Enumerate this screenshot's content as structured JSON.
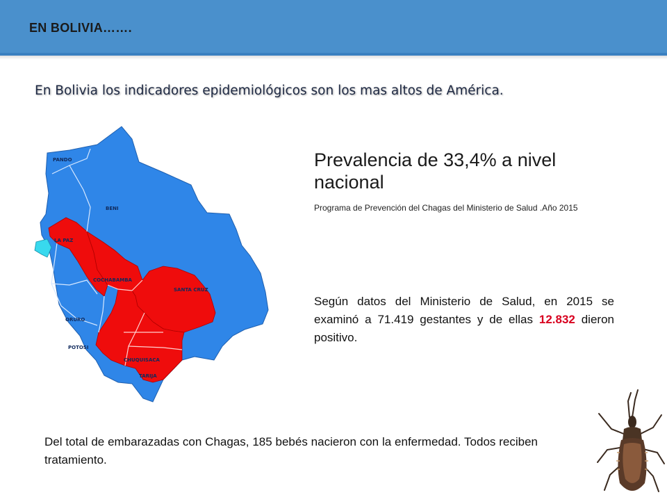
{
  "header": {
    "title": "EN BOLIVIA……."
  },
  "headline": "En Bolivia los indicadores epidemiológicos son los mas altos de  América.",
  "stat": {
    "main": "Prevalencia de 33,4% a nivel nacional",
    "source": "Programa de Prevención del Chagas del Ministerio de Salud .Año 2015"
  },
  "paragraph": {
    "before": "Según datos del Ministerio de Salud, en 2015 se examinó a 71.419 gestantes y de ellas ",
    "highlight": "12.832",
    "after": " dieron positivo."
  },
  "bottom_text": "Del total de embarazadas con Chagas, 185 bebés nacieron con la enfermedad. Todos reciben tratamiento.",
  "map": {
    "colors": {
      "non_endemic": "#2f86e8",
      "endemic": "#ef0c0c",
      "lake": "#38d9ee"
    },
    "labels": {
      "pando": "PANDO",
      "beni": "BENI",
      "la_paz": "LA PAZ",
      "cochabamba": "COCHABAMBA",
      "santa_cruz": "SANTA CRUZ",
      "oruro": "ORURO",
      "potosi": "POTOSI",
      "chuquisaca": "CHUQUISACA",
      "tarija": "TARIJA"
    }
  }
}
